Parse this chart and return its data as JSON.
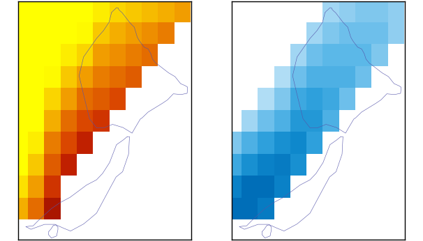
{
  "fig_width": 6.06,
  "fig_height": 3.46,
  "dpi": 100,
  "background": "#ffffff",
  "border_color": "#000000",
  "coastline_color": "#5555aa",
  "coastline_linewidth": 0.4,
  "panel_xlim": [
    165.5,
    178.8
  ],
  "panel_ylim": [
    -47.4,
    -33.8
  ],
  "cell_size": 1.25,
  "rainfall_colors": [
    [
      0.0,
      "#7A0000"
    ],
    [
      0.12,
      "#9E1000"
    ],
    [
      0.2,
      "#C02000"
    ],
    [
      0.28,
      "#D84000"
    ],
    [
      0.36,
      "#E06000"
    ],
    [
      0.44,
      "#E87800"
    ],
    [
      0.52,
      "#F09400"
    ],
    [
      0.6,
      "#F4AE00"
    ],
    [
      0.7,
      "#F8C800"
    ],
    [
      0.8,
      "#FCE000"
    ],
    [
      0.9,
      "#FEFA00"
    ],
    [
      1.0,
      "#FFFF00"
    ]
  ],
  "temp_colors": [
    [
      0.0,
      "#EAF6FF"
    ],
    [
      0.2,
      "#C0E4F8"
    ],
    [
      0.35,
      "#90CEF0"
    ],
    [
      0.5,
      "#5CB8E8"
    ],
    [
      0.65,
      "#2EA0DC"
    ],
    [
      0.8,
      "#0E88CC"
    ],
    [
      1.0,
      "#006EB8"
    ]
  ],
  "rainfall_cells": [
    {
      "lon": 165.0,
      "lat": -35.0,
      "v": 1.0
    },
    {
      "lon": 165.0,
      "lat": -36.25,
      "v": 1.0
    },
    {
      "lon": 165.0,
      "lat": -37.5,
      "v": 1.0
    },
    {
      "lon": 165.0,
      "lat": -38.75,
      "v": 1.0
    },
    {
      "lon": 165.0,
      "lat": -40.0,
      "v": 1.0
    },
    {
      "lon": 165.0,
      "lat": -41.25,
      "v": 1.0
    },
    {
      "lon": 165.0,
      "lat": -42.5,
      "v": 1.0
    },
    {
      "lon": 165.0,
      "lat": -43.75,
      "v": 1.0
    },
    {
      "lon": 165.0,
      "lat": -45.0,
      "v": 0.8
    },
    {
      "lon": 165.0,
      "lat": -46.25,
      "v": 0.6
    },
    {
      "lon": 166.25,
      "lat": -34.0,
      "v": 1.0
    },
    {
      "lon": 166.25,
      "lat": -35.0,
      "v": 1.0
    },
    {
      "lon": 166.25,
      "lat": -36.25,
      "v": 1.0
    },
    {
      "lon": 166.25,
      "lat": -37.5,
      "v": 1.0
    },
    {
      "lon": 166.25,
      "lat": -38.75,
      "v": 1.0
    },
    {
      "lon": 166.25,
      "lat": -40.0,
      "v": 1.0
    },
    {
      "lon": 166.25,
      "lat": -41.25,
      "v": 1.0
    },
    {
      "lon": 166.25,
      "lat": -42.5,
      "v": 0.85
    },
    {
      "lon": 166.25,
      "lat": -43.75,
      "v": 0.7
    },
    {
      "lon": 166.25,
      "lat": -45.0,
      "v": 0.55
    },
    {
      "lon": 166.25,
      "lat": -46.25,
      "v": 0.4
    },
    {
      "lon": 167.5,
      "lat": -34.0,
      "v": 1.0
    },
    {
      "lon": 167.5,
      "lat": -35.0,
      "v": 1.0
    },
    {
      "lon": 167.5,
      "lat": -36.25,
      "v": 1.0
    },
    {
      "lon": 167.5,
      "lat": -37.5,
      "v": 1.0
    },
    {
      "lon": 167.5,
      "lat": -38.75,
      "v": 0.9
    },
    {
      "lon": 167.5,
      "lat": -40.0,
      "v": 0.75
    },
    {
      "lon": 167.5,
      "lat": -41.25,
      "v": 0.6
    },
    {
      "lon": 167.5,
      "lat": -42.5,
      "v": 0.45
    },
    {
      "lon": 167.5,
      "lat": -43.75,
      "v": 0.35
    },
    {
      "lon": 167.5,
      "lat": -45.0,
      "v": 0.25
    },
    {
      "lon": 167.5,
      "lat": -46.25,
      "v": 0.15
    },
    {
      "lon": 168.75,
      "lat": -34.0,
      "v": 1.0
    },
    {
      "lon": 168.75,
      "lat": -35.0,
      "v": 1.0
    },
    {
      "lon": 168.75,
      "lat": -36.25,
      "v": 1.0
    },
    {
      "lon": 168.75,
      "lat": -37.5,
      "v": 0.85
    },
    {
      "lon": 168.75,
      "lat": -38.75,
      "v": 0.7
    },
    {
      "lon": 168.75,
      "lat": -40.0,
      "v": 0.55
    },
    {
      "lon": 168.75,
      "lat": -41.25,
      "v": 0.4
    },
    {
      "lon": 168.75,
      "lat": -42.5,
      "v": 0.3
    },
    {
      "lon": 168.75,
      "lat": -43.75,
      "v": 0.2
    },
    {
      "lon": 170.0,
      "lat": -34.0,
      "v": 1.0
    },
    {
      "lon": 170.0,
      "lat": -35.0,
      "v": 1.0
    },
    {
      "lon": 170.0,
      "lat": -36.25,
      "v": 0.9
    },
    {
      "lon": 170.0,
      "lat": -37.5,
      "v": 0.75
    },
    {
      "lon": 170.0,
      "lat": -38.75,
      "v": 0.55
    },
    {
      "lon": 170.0,
      "lat": -40.0,
      "v": 0.4
    },
    {
      "lon": 170.0,
      "lat": -41.25,
      "v": 0.3
    },
    {
      "lon": 170.0,
      "lat": -42.5,
      "v": 0.2
    },
    {
      "lon": 171.25,
      "lat": -34.0,
      "v": 1.0
    },
    {
      "lon": 171.25,
      "lat": -35.0,
      "v": 0.85
    },
    {
      "lon": 171.25,
      "lat": -36.25,
      "v": 0.7
    },
    {
      "lon": 171.25,
      "lat": -37.5,
      "v": 0.55
    },
    {
      "lon": 171.25,
      "lat": -38.75,
      "v": 0.45
    },
    {
      "lon": 171.25,
      "lat": -40.0,
      "v": 0.35
    },
    {
      "lon": 171.25,
      "lat": -41.25,
      "v": 0.25
    },
    {
      "lon": 172.5,
      "lat": -34.0,
      "v": 1.0
    },
    {
      "lon": 172.5,
      "lat": -35.0,
      "v": 0.75
    },
    {
      "lon": 172.5,
      "lat": -36.25,
      "v": 0.6
    },
    {
      "lon": 172.5,
      "lat": -37.5,
      "v": 0.5
    },
    {
      "lon": 172.5,
      "lat": -38.75,
      "v": 0.4
    },
    {
      "lon": 172.5,
      "lat": -40.0,
      "v": 0.3
    },
    {
      "lon": 173.75,
      "lat": -34.0,
      "v": 1.0
    },
    {
      "lon": 173.75,
      "lat": -35.0,
      "v": 0.7
    },
    {
      "lon": 173.75,
      "lat": -36.25,
      "v": 0.55
    },
    {
      "lon": 173.75,
      "lat": -37.5,
      "v": 0.45
    },
    {
      "lon": 173.75,
      "lat": -38.75,
      "v": 0.35
    },
    {
      "lon": 175.0,
      "lat": -34.0,
      "v": 1.0
    },
    {
      "lon": 175.0,
      "lat": -35.0,
      "v": 0.65
    },
    {
      "lon": 175.0,
      "lat": -36.25,
      "v": 0.5
    },
    {
      "lon": 175.0,
      "lat": -37.5,
      "v": 0.4
    },
    {
      "lon": 176.25,
      "lat": -34.0,
      "v": 1.0
    },
    {
      "lon": 176.25,
      "lat": -35.0,
      "v": 0.6
    },
    {
      "lon": 176.25,
      "lat": -36.25,
      "v": 0.45
    },
    {
      "lon": 177.5,
      "lat": -34.0,
      "v": 1.0
    },
    {
      "lon": 177.5,
      "lat": -35.0,
      "v": 0.55
    }
  ],
  "temp_cells": [
    {
      "lon": 165.0,
      "lat": -42.5,
      "v": 0.4
    },
    {
      "lon": 165.0,
      "lat": -43.75,
      "v": 0.6
    },
    {
      "lon": 165.0,
      "lat": -45.0,
      "v": 0.85
    },
    {
      "lon": 165.0,
      "lat": -46.25,
      "v": 1.0
    },
    {
      "lon": 166.25,
      "lat": -41.25,
      "v": 0.3
    },
    {
      "lon": 166.25,
      "lat": -42.5,
      "v": 0.55
    },
    {
      "lon": 166.25,
      "lat": -43.75,
      "v": 0.75
    },
    {
      "lon": 166.25,
      "lat": -45.0,
      "v": 1.0
    },
    {
      "lon": 166.25,
      "lat": -46.25,
      "v": 1.0
    },
    {
      "lon": 167.5,
      "lat": -40.0,
      "v": 0.25
    },
    {
      "lon": 167.5,
      "lat": -41.25,
      "v": 0.45
    },
    {
      "lon": 167.5,
      "lat": -42.5,
      "v": 0.65
    },
    {
      "lon": 167.5,
      "lat": -43.75,
      "v": 0.85
    },
    {
      "lon": 167.5,
      "lat": -45.0,
      "v": 1.0
    },
    {
      "lon": 167.5,
      "lat": -46.25,
      "v": 0.9
    },
    {
      "lon": 168.75,
      "lat": -38.75,
      "v": 0.25
    },
    {
      "lon": 168.75,
      "lat": -40.0,
      "v": 0.4
    },
    {
      "lon": 168.75,
      "lat": -41.25,
      "v": 0.55
    },
    {
      "lon": 168.75,
      "lat": -42.5,
      "v": 0.75
    },
    {
      "lon": 168.75,
      "lat": -43.75,
      "v": 0.9
    },
    {
      "lon": 168.75,
      "lat": -45.0,
      "v": 0.85
    },
    {
      "lon": 170.0,
      "lat": -37.5,
      "v": 0.3
    },
    {
      "lon": 170.0,
      "lat": -38.75,
      "v": 0.45
    },
    {
      "lon": 170.0,
      "lat": -40.0,
      "v": 0.6
    },
    {
      "lon": 170.0,
      "lat": -41.25,
      "v": 0.7
    },
    {
      "lon": 170.0,
      "lat": -42.5,
      "v": 0.8
    },
    {
      "lon": 170.0,
      "lat": -43.75,
      "v": 0.75
    },
    {
      "lon": 171.25,
      "lat": -36.25,
      "v": 0.3
    },
    {
      "lon": 171.25,
      "lat": -37.5,
      "v": 0.45
    },
    {
      "lon": 171.25,
      "lat": -38.75,
      "v": 0.55
    },
    {
      "lon": 171.25,
      "lat": -40.0,
      "v": 0.65
    },
    {
      "lon": 171.25,
      "lat": -41.25,
      "v": 0.7
    },
    {
      "lon": 171.25,
      "lat": -42.5,
      "v": 0.65
    },
    {
      "lon": 172.5,
      "lat": -35.0,
      "v": 0.3
    },
    {
      "lon": 172.5,
      "lat": -36.25,
      "v": 0.4
    },
    {
      "lon": 172.5,
      "lat": -37.5,
      "v": 0.5
    },
    {
      "lon": 172.5,
      "lat": -38.75,
      "v": 0.55
    },
    {
      "lon": 172.5,
      "lat": -40.0,
      "v": 0.6
    },
    {
      "lon": 172.5,
      "lat": -41.25,
      "v": 0.55
    },
    {
      "lon": 173.75,
      "lat": -34.0,
      "v": 0.25
    },
    {
      "lon": 173.75,
      "lat": -35.0,
      "v": 0.35
    },
    {
      "lon": 173.75,
      "lat": -36.25,
      "v": 0.45
    },
    {
      "lon": 173.75,
      "lat": -37.5,
      "v": 0.5
    },
    {
      "lon": 173.75,
      "lat": -38.75,
      "v": 0.55
    },
    {
      "lon": 173.75,
      "lat": -40.0,
      "v": 0.45
    },
    {
      "lon": 175.0,
      "lat": -34.0,
      "v": 0.3
    },
    {
      "lon": 175.0,
      "lat": -35.0,
      "v": 0.4
    },
    {
      "lon": 175.0,
      "lat": -36.25,
      "v": 0.45
    },
    {
      "lon": 175.0,
      "lat": -37.5,
      "v": 0.5
    },
    {
      "lon": 175.0,
      "lat": -38.75,
      "v": 0.45
    },
    {
      "lon": 176.25,
      "lat": -34.0,
      "v": 0.3
    },
    {
      "lon": 176.25,
      "lat": -35.0,
      "v": 0.4
    },
    {
      "lon": 176.25,
      "lat": -36.25,
      "v": 0.45
    },
    {
      "lon": 176.25,
      "lat": -37.5,
      "v": 0.4
    },
    {
      "lon": 177.5,
      "lat": -34.0,
      "v": 0.3
    },
    {
      "lon": 177.5,
      "lat": -35.0,
      "v": 0.35
    },
    {
      "lon": 177.5,
      "lat": -36.25,
      "v": 0.35
    }
  ]
}
